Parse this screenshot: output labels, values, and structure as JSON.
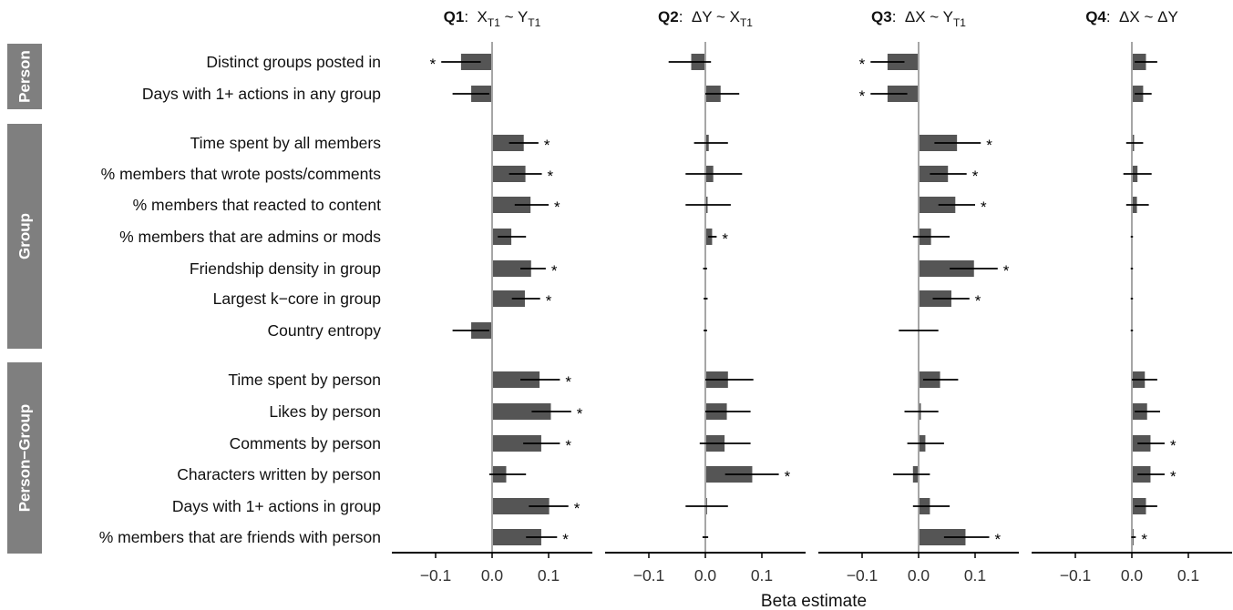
{
  "chart_data": {
    "type": "bar",
    "xlabel": "Beta estimate",
    "xlim": [
      -0.17,
      0.17
    ],
    "xticks": [
      -0.1,
      0.0,
      0.1
    ],
    "xtick_labels": [
      "−0.1",
      "0.0",
      "0.1"
    ],
    "bar_color": "#555555",
    "strip_color": "#7f7f7f",
    "panels": [
      {
        "id": "q1",
        "title_bold": "Q1",
        "title_expr": [
          "X",
          {
            "sub": "T1"
          },
          " ~ Y",
          {
            "sub": "T1"
          }
        ]
      },
      {
        "id": "q2",
        "title_bold": "Q2",
        "title_expr": [
          "ΔY ~ X",
          {
            "sub": "T1"
          }
        ]
      },
      {
        "id": "q3",
        "title_bold": "Q3",
        "title_expr": [
          "ΔX ~ Y",
          {
            "sub": "T1"
          }
        ]
      },
      {
        "id": "q4",
        "title_bold": "Q4",
        "title_expr": [
          "ΔX ~ ΔY"
        ]
      }
    ],
    "groups": [
      {
        "name": "Person",
        "row_start": 0,
        "row_count": 2
      },
      {
        "name": "Group",
        "row_start": 2,
        "row_count": 7
      },
      {
        "name": "Person−Group",
        "row_start": 9,
        "row_count": 6
      }
    ],
    "rows": [
      "Distinct groups posted in",
      "Days with 1+ actions in any group",
      "Time spent by all members",
      "% members that wrote posts/comments",
      "% members that reacted to content",
      "% members that are admins or mods",
      "Friendship density in group",
      "Largest k−core in group",
      "Country entropy",
      "Time spent by person",
      "Likes by person",
      "Comments by person",
      "Characters written by person",
      "Days with 1+ actions in group",
      "% members that are friends with person"
    ],
    "series": [
      {
        "panel": "q1",
        "values": [
          -0.055,
          -0.037,
          0.056,
          0.059,
          0.068,
          0.034,
          0.069,
          0.058,
          -0.037,
          0.084,
          0.104,
          0.087,
          0.025,
          0.101,
          0.087
        ],
        "ci_low": [
          -0.09,
          -0.07,
          0.03,
          0.03,
          0.04,
          0.01,
          0.05,
          0.035,
          -0.07,
          0.05,
          0.07,
          0.055,
          -0.005,
          0.065,
          0.06
        ],
        "ci_high": [
          -0.02,
          -0.005,
          0.082,
          0.088,
          0.1,
          0.06,
          0.095,
          0.085,
          -0.005,
          0.12,
          0.14,
          0.12,
          0.06,
          0.135,
          0.115
        ],
        "significant": [
          true,
          false,
          true,
          true,
          true,
          false,
          true,
          true,
          false,
          true,
          true,
          true,
          false,
          true,
          true
        ]
      },
      {
        "panel": "q2",
        "values": [
          -0.025,
          0.027,
          0.006,
          0.014,
          0.004,
          0.012,
          -0.001,
          0.0,
          0.0,
          0.04,
          0.038,
          0.034,
          0.083,
          0.003,
          0.0
        ],
        "ci_low": [
          -0.065,
          0.0,
          -0.02,
          -0.035,
          -0.035,
          0.005,
          -0.004,
          -0.003,
          -0.003,
          0.0,
          0.0,
          -0.01,
          0.035,
          -0.035,
          -0.005
        ],
        "ci_high": [
          0.01,
          0.06,
          0.04,
          0.065,
          0.045,
          0.02,
          0.003,
          0.004,
          0.003,
          0.085,
          0.08,
          0.08,
          0.13,
          0.04,
          0.005
        ],
        "significant": [
          false,
          false,
          false,
          false,
          false,
          true,
          false,
          false,
          false,
          false,
          false,
          false,
          true,
          false,
          false
        ]
      },
      {
        "panel": "q3",
        "values": [
          -0.055,
          -0.055,
          0.068,
          0.052,
          0.065,
          0.022,
          0.098,
          0.058,
          0.0,
          0.038,
          0.004,
          0.012,
          -0.01,
          0.02,
          0.083
        ],
        "ci_low": [
          -0.085,
          -0.085,
          0.028,
          0.02,
          0.035,
          -0.01,
          0.055,
          0.025,
          -0.035,
          0.008,
          -0.025,
          -0.02,
          -0.045,
          -0.01,
          0.045
        ],
        "ci_high": [
          -0.025,
          -0.02,
          0.11,
          0.085,
          0.1,
          0.055,
          0.14,
          0.09,
          0.035,
          0.07,
          0.035,
          0.045,
          0.02,
          0.055,
          0.125
        ],
        "significant": [
          true,
          true,
          true,
          true,
          true,
          false,
          true,
          true,
          false,
          false,
          false,
          false,
          false,
          false,
          true
        ]
      },
      {
        "panel": "q4",
        "values": [
          0.025,
          0.02,
          0.004,
          0.01,
          0.009,
          0.0,
          0.0,
          0.0,
          0.0,
          0.023,
          0.027,
          0.033,
          0.033,
          0.025,
          0.003
        ],
        "ci_low": [
          0.005,
          0.005,
          -0.01,
          -0.015,
          -0.01,
          -0.002,
          -0.002,
          -0.002,
          -0.002,
          0.0,
          0.005,
          0.01,
          0.01,
          0.005,
          -0.001
        ],
        "ci_high": [
          0.045,
          0.035,
          0.02,
          0.035,
          0.03,
          0.002,
          0.002,
          0.002,
          0.002,
          0.045,
          0.05,
          0.058,
          0.058,
          0.045,
          0.007
        ],
        "significant": [
          false,
          false,
          false,
          false,
          false,
          false,
          false,
          false,
          false,
          false,
          false,
          true,
          true,
          false,
          true
        ]
      }
    ]
  }
}
